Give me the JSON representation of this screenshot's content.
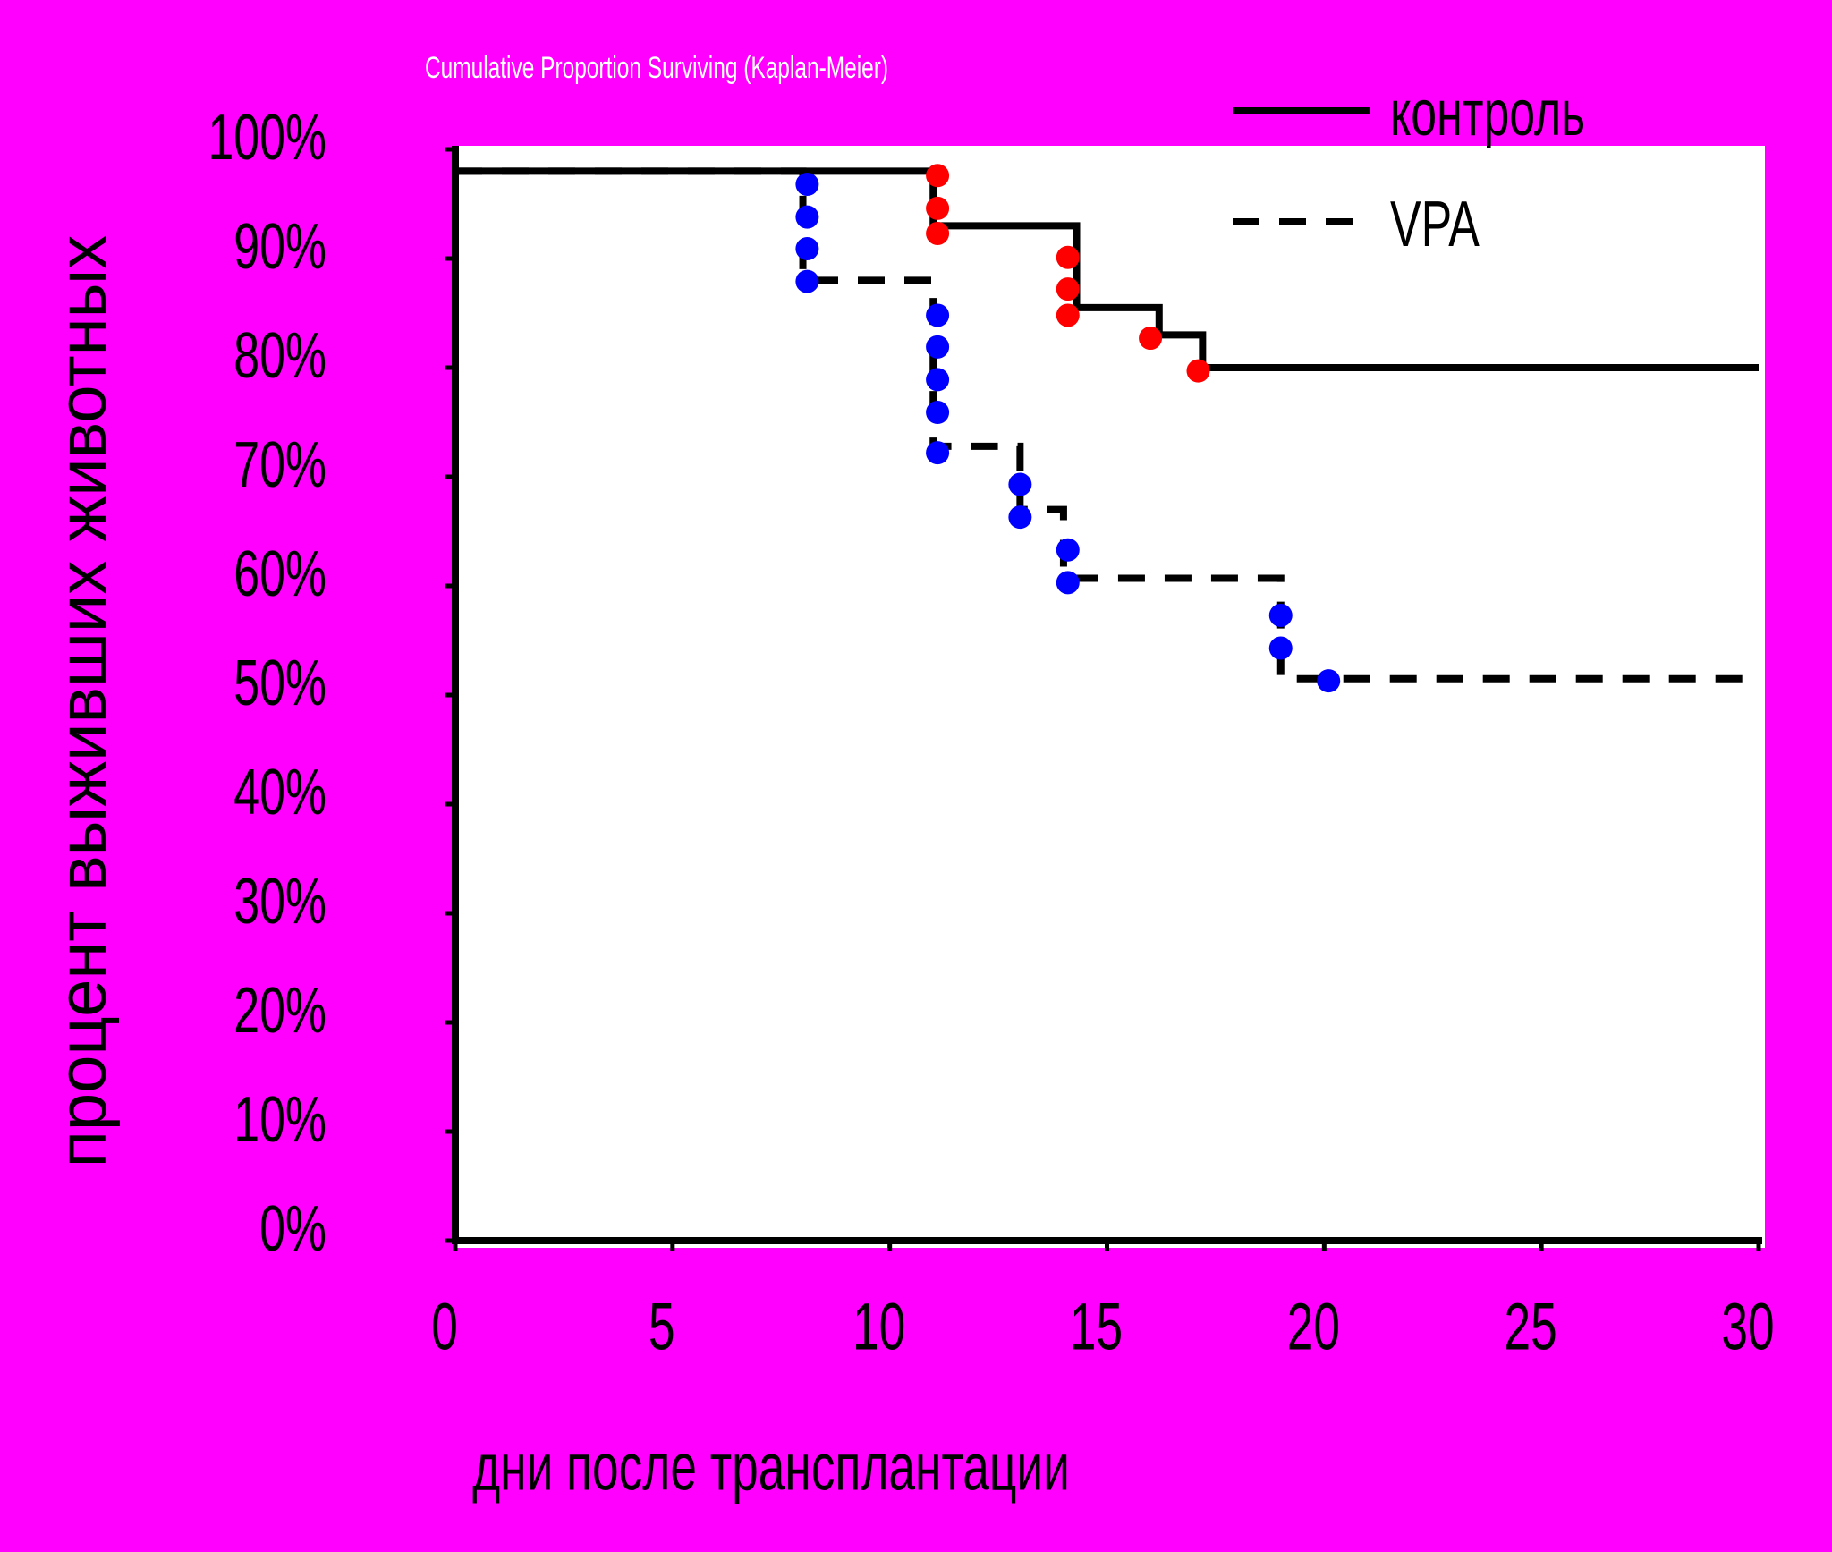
{
  "chart_data": {
    "type": "step-line",
    "title": "Cumulative Proportion Surviving (Kaplan-Meier)",
    "x_label": "дни после трансплантации",
    "y_label": "процент выживших животных",
    "xlim": [
      0,
      30
    ],
    "xticks": [
      0,
      5,
      10,
      15,
      20,
      25,
      30
    ],
    "ylim": [
      0,
      100
    ],
    "yticks": [
      {
        "value": 0,
        "label": "0%"
      },
      {
        "value": 10,
        "label": "10%"
      },
      {
        "value": 20,
        "label": "20%"
      },
      {
        "value": 30,
        "label": "30%"
      },
      {
        "value": 40,
        "label": "40%"
      },
      {
        "value": 50,
        "label": "50%"
      },
      {
        "value": 60,
        "label": "60%"
      },
      {
        "value": 70,
        "label": "70%"
      },
      {
        "value": 80,
        "label": "80%"
      },
      {
        "value": 90,
        "label": "90%"
      },
      {
        "value": 100,
        "label": "100%"
      }
    ],
    "legend": "top-right",
    "series": [
      {
        "name": "контроль",
        "color": "#000000",
        "dashed": false,
        "marker_color": "#ff0000",
        "x": [
          0,
          11,
          11,
          14.3,
          14.3,
          16.2,
          16.2,
          17.2,
          17.2,
          30
        ],
        "values": [
          98,
          98,
          93,
          93,
          85.5,
          85.5,
          83,
          83,
          80,
          80
        ],
        "markers": {
          "x": [
            11.1,
            11.1,
            11.1,
            14.1,
            14.1,
            14.1,
            16.0,
            17.1
          ],
          "values": [
            97.6,
            94.6,
            92.3,
            90.1,
            87.2,
            84.8,
            82.7,
            79.7
          ]
        }
      },
      {
        "name": "VPA",
        "color": "#000000",
        "dashed": true,
        "marker_color": "#0000ff",
        "x": [
          0,
          8,
          8,
          11,
          11,
          13,
          13,
          14,
          14,
          19,
          19,
          30
        ],
        "values": [
          98,
          98,
          88,
          88,
          72.8,
          72.8,
          67,
          67,
          60.7,
          60.7,
          51.5,
          51.5
        ],
        "markers": {
          "x": [
            8.1,
            8.1,
            8.1,
            8.1,
            11.1,
            11.1,
            11.1,
            11.1,
            11.1,
            13.0,
            13.0,
            14.1,
            14.1,
            19.0,
            19.0,
            20.1
          ],
          "values": [
            96.8,
            93.8,
            90.9,
            87.9,
            84.8,
            81.9,
            78.9,
            75.9,
            72.2,
            69.3,
            66.3,
            63.3,
            60.3,
            57.3,
            54.3,
            51.3
          ]
        }
      }
    ]
  }
}
